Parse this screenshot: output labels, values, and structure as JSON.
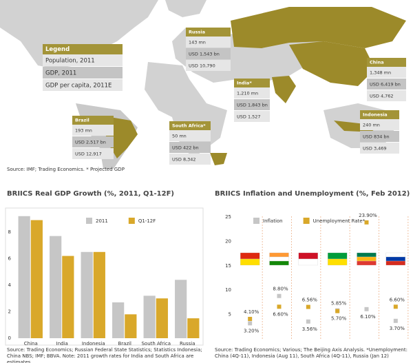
{
  "map": {
    "legend": {
      "title": "Legend",
      "items": [
        "Population, 2011",
        "GDP, 2011",
        "GDP per capita, 2011E"
      ]
    },
    "countries": [
      {
        "name": "Russia",
        "rows": [
          "143 mn",
          "USD 1,543 bn",
          "USD 10,790"
        ]
      },
      {
        "name": "India*",
        "rows": [
          "1,210 mn",
          "USD 1,843 bn",
          "USD 1,527"
        ]
      },
      {
        "name": "China",
        "rows": [
          "1,348 mn",
          "USD 6,419 bn",
          "USD 4,762"
        ]
      },
      {
        "name": "Indonesia",
        "rows": [
          "240 mn",
          "USD 834 bn",
          "USD 3,469"
        ]
      },
      {
        "name": "Brazil",
        "rows": [
          "193 mn",
          "USD 2,517 bn",
          "USD 12,917"
        ]
      },
      {
        "name": "South Africa*",
        "rows": [
          "50 mn",
          "USD 422 bn",
          "USD 8,342"
        ]
      }
    ],
    "source": "Source: IMF; Trading Economics. * Projected GDP"
  },
  "chart_data": [
    {
      "type": "bar",
      "title": "BRIICS Real GDP Growth (%, 2011, Q1-12F)",
      "categories": [
        "China",
        "India",
        "Indonesia",
        "Brazil",
        "South Africa",
        "Russia"
      ],
      "series": [
        {
          "name": "2011",
          "color": "#c6c6c6",
          "values": [
            9.2,
            7.7,
            6.5,
            2.7,
            3.2,
            4.4
          ]
        },
        {
          "name": "Q1-12F",
          "color": "#d9a82a",
          "values": [
            8.9,
            6.2,
            6.5,
            1.8,
            3.0,
            1.5
          ]
        }
      ],
      "ylim": [
        0,
        9.5
      ],
      "yticks": [
        0,
        2,
        4,
        6,
        8
      ],
      "legend": "upper right",
      "source": "Source: Trading Economics; Russian Federal State Statistics; Statistics Indonesia; China NBS; IMF; BBVA. Note: 2011 growth rates for India and South Africa are estimates."
    },
    {
      "type": "dot",
      "title": "BRIICS Inflation and Unemployment (%, Feb 2012)",
      "categories": [
        null,
        null,
        null,
        null,
        null,
        null
      ],
      "series": [
        {
          "name": "Inflation",
          "color": "#c6c6c6",
          "values": [
            3.2,
            8.8,
            3.56,
            5.85,
            6.1,
            3.7
          ],
          "value_labels": [
            "3.20%",
            "8.80%",
            "3.56%",
            "5.85%",
            "6.10%",
            "3.70%"
          ]
        },
        {
          "name": "Unemployment Rate*",
          "color": "#d9a82a",
          "values": [
            4.1,
            6.6,
            6.56,
            5.7,
            23.9,
            6.6
          ],
          "value_labels": [
            "4.10%",
            "6.60%",
            "6.56%",
            "5.70%",
            "23.90%",
            "6.60%"
          ]
        }
      ],
      "ylim": [
        0,
        26
      ],
      "yticks": [
        5,
        10,
        15,
        20,
        25
      ],
      "legend": "upper center",
      "source": "Source: Trading Economics; Various; The Beijing Axis Analysis. *Unemployment: China (4Q-11), Indonesia (Aug 11), South Africa (4Q-11), Russia (Jan 12)"
    }
  ]
}
